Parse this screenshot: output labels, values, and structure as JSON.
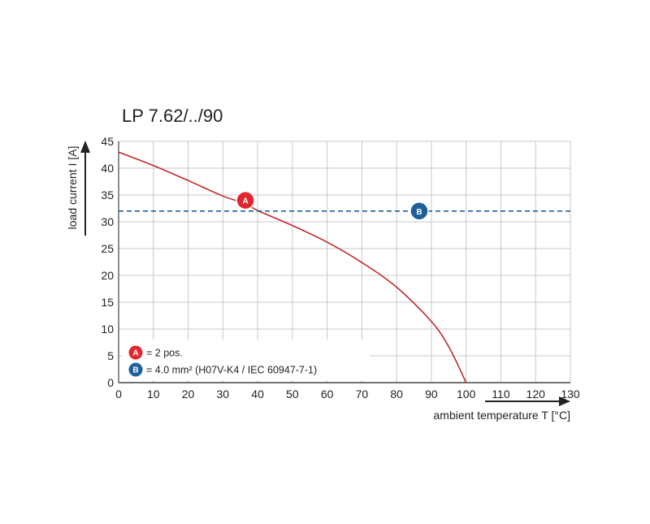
{
  "chart_data": {
    "type": "line",
    "title": "LP 7.62/../90",
    "xlabel": "ambient temperature T [°C]",
    "ylabel": "load current I [A]",
    "xlim": [
      0,
      130
    ],
    "ylim": [
      0,
      45
    ],
    "xticks": [
      "0",
      "10",
      "20",
      "30",
      "40",
      "50",
      "60",
      "70",
      "80",
      "90",
      "100",
      "110",
      "120",
      "130"
    ],
    "yticks": [
      "0",
      "5",
      "10",
      "15",
      "20",
      "25",
      "30",
      "35",
      "40",
      "45"
    ],
    "grid": true,
    "series": [
      {
        "marker": "A",
        "color": "#c0282c",
        "x": [
          0,
          10,
          20,
          30,
          36.5,
          40,
          50,
          60,
          70,
          80,
          90,
          95,
          100
        ],
        "y": [
          43,
          40.5,
          37.7,
          34.8,
          33.4,
          32.1,
          29.3,
          26.2,
          22.4,
          17.8,
          11.4,
          6.7,
          0
        ]
      },
      {
        "marker": "B",
        "color": "#1f5f9a",
        "style": "dashed",
        "x": [
          0,
          130
        ],
        "y": [
          32,
          32
        ]
      }
    ],
    "markers": [
      {
        "label": "A",
        "x": 36.5,
        "y": 34,
        "color": "#e0262f"
      },
      {
        "label": "B",
        "x": 86.5,
        "y": 32,
        "color": "#1f5f9a"
      }
    ],
    "legend": {
      "placement": "bottom-left",
      "entries": [
        {
          "marker": "A",
          "text": "= 2 pos."
        },
        {
          "marker": "B",
          "text": "= 4.0 mm² (H07V-K4 / IEC 60947-7-1)"
        }
      ]
    }
  }
}
